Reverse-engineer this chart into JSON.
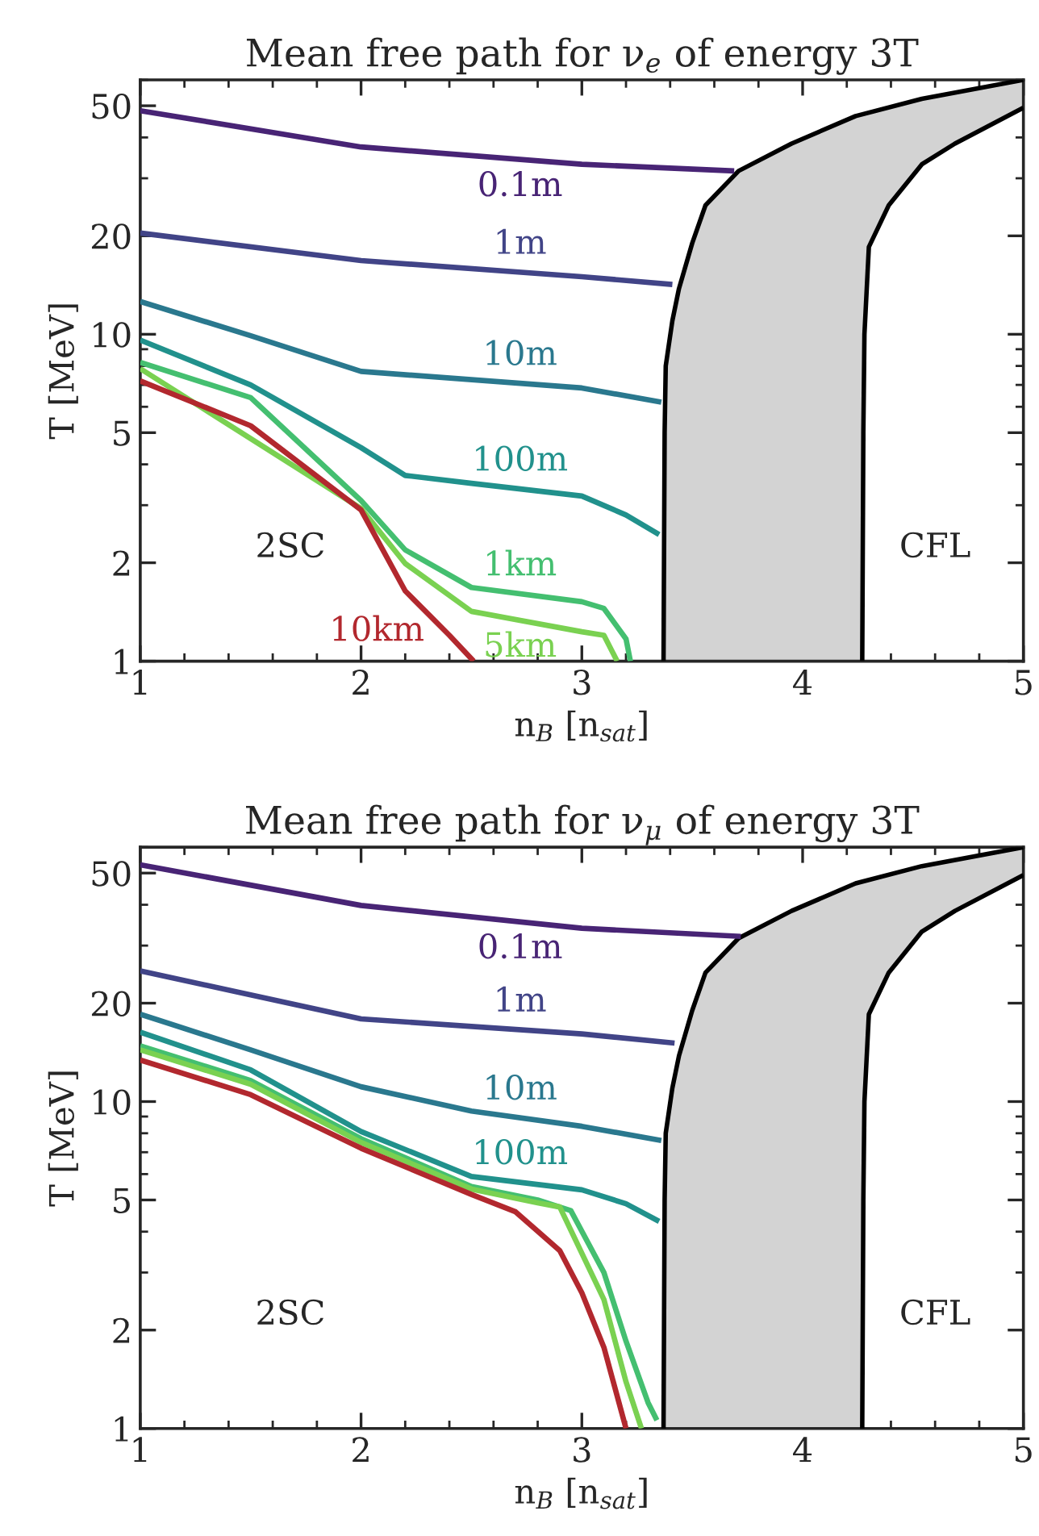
{
  "chart_data": [
    {
      "type": "line",
      "title": "Mean free path for ν$_{e}$ of energy 3T",
      "xlabel": "n$_{B}$ [n$_{sat}$]",
      "ylabel": "T [MeV]",
      "log": "y",
      "xlim": [
        1,
        5
      ],
      "ylim": [
        1,
        60
      ],
      "xticks": [
        1,
        2,
        3,
        4,
        5
      ],
      "yticks": [
        1,
        2,
        5,
        10,
        20,
        50
      ],
      "series": [
        {
          "type": "line",
          "color": "#000000",
          "x": [
            3.37,
            3.375,
            3.38,
            3.41,
            3.44,
            3.5,
            3.56,
            3.71,
            3.95,
            4.24,
            4.54,
            5
          ],
          "values": [
            1,
            5,
            8,
            11,
            13.8,
            19,
            24.8,
            31.6,
            38.3,
            46.5,
            52.5,
            60
          ]
        },
        {
          "type": "line",
          "color": "#000000",
          "x": [
            4.27,
            4.275,
            4.28,
            4.3,
            4.39,
            4.54,
            4.69,
            5
          ],
          "values": [
            1,
            5,
            10,
            18.5,
            24.8,
            33.1,
            38.3,
            49.3
          ]
        },
        {
          "name": "0.1m",
          "color": "#482475",
          "x": [
            1,
            2,
            3,
            3.69
          ],
          "values": [
            48.3,
            37.4,
            33.1,
            31.6
          ]
        },
        {
          "name": "1m",
          "color": "#414487",
          "x": [
            1,
            2,
            3,
            3.41
          ],
          "values": [
            20.4,
            16.8,
            15.0,
            14.2
          ]
        },
        {
          "name": "10m",
          "color": "#2a788e",
          "x": [
            1,
            1.5,
            2,
            3,
            3.36
          ],
          "values": [
            12.6,
            9.9,
            7.7,
            6.85,
            6.2
          ]
        },
        {
          "name": "100m",
          "color": "#21918c",
          "x": [
            1,
            1.5,
            2,
            2.2,
            2.5,
            3,
            3.2,
            3.35
          ],
          "values": [
            9.6,
            7.0,
            4.5,
            3.7,
            3.5,
            3.2,
            2.8,
            2.44
          ]
        },
        {
          "name": "1km",
          "color": "#44bf70",
          "x": [
            1,
            1.5,
            2,
            2.2,
            2.5,
            3,
            3.1,
            3.2,
            3.22
          ],
          "values": [
            8.2,
            6.4,
            3.1,
            2.19,
            1.68,
            1.52,
            1.45,
            1.17,
            1
          ]
        },
        {
          "name": "5km",
          "color": "#7ad151",
          "x": [
            1,
            2,
            2.2,
            2.5,
            3,
            3.1,
            3.16
          ],
          "values": [
            7.85,
            2.93,
            1.99,
            1.42,
            1.23,
            1.2,
            1
          ]
        },
        {
          "name": "10km",
          "color": "#b2282e",
          "x": [
            1,
            1.5,
            2,
            2.2,
            2.4,
            2.51
          ],
          "values": [
            7.2,
            5.25,
            2.9,
            1.64,
            1.2,
            1
          ]
        }
      ],
      "annotations": [
        "2SC",
        "CFL"
      ]
    },
    {
      "type": "line",
      "title": "Mean free path for ν$_{μ}$ of energy 3T",
      "xlabel": "n$_{B}$ [n$_{sat}$]",
      "ylabel": "T [MeV]",
      "log": "y",
      "xlim": [
        1,
        5
      ],
      "ylim": [
        1,
        60
      ],
      "xticks": [
        1,
        2,
        3,
        4,
        5
      ],
      "yticks": [
        1,
        2,
        5,
        10,
        20,
        50
      ],
      "series": [
        {
          "type": "line",
          "color": "#000000",
          "x": [
            3.37,
            3.375,
            3.38,
            3.41,
            3.44,
            3.5,
            3.56,
            3.71,
            3.95,
            4.24,
            4.54,
            5
          ],
          "values": [
            1,
            5,
            8,
            11,
            13.8,
            19,
            24.8,
            31.6,
            38.3,
            46.5,
            52.5,
            60
          ]
        },
        {
          "type": "line",
          "color": "#000000",
          "x": [
            4.27,
            4.275,
            4.28,
            4.3,
            4.39,
            4.54,
            4.69,
            5
          ],
          "values": [
            1,
            5,
            10,
            18.5,
            24.8,
            33.1,
            38.3,
            49.3
          ]
        },
        {
          "name": "0.1m",
          "color": "#482475",
          "x": [
            1,
            2,
            3,
            3.72
          ],
          "values": [
            53,
            39.8,
            33.9,
            32
          ]
        },
        {
          "name": "1m",
          "color": "#414487",
          "x": [
            1,
            1.5,
            2,
            3,
            3.42
          ],
          "values": [
            25.1,
            21.2,
            17.9,
            16.1,
            15.1
          ]
        },
        {
          "name": "10m",
          "color": "#2a788e",
          "x": [
            1,
            1.5,
            2,
            2.5,
            3,
            3.36
          ],
          "values": [
            18.5,
            14.4,
            11.1,
            9.35,
            8.4,
            7.6
          ]
        },
        {
          "name": "100m",
          "color": "#21918c",
          "x": [
            1,
            1.5,
            2,
            2.5,
            3,
            3.2,
            3.35
          ],
          "values": [
            16.3,
            12.5,
            8.1,
            5.9,
            5.37,
            4.87,
            4.3
          ]
        },
        {
          "color": "#44bf70",
          "x": [
            1,
            1.5,
            2,
            2.5,
            2.8,
            2.95,
            3.1,
            3.2,
            3.3,
            3.34
          ],
          "values": [
            14.8,
            11.6,
            7.7,
            5.5,
            5.0,
            4.64,
            3.0,
            1.85,
            1.2,
            1.06
          ]
        },
        {
          "color": "#7ad151",
          "x": [
            1,
            1.5,
            2,
            2.5,
            2.8,
            2.9,
            3.1,
            3.2,
            3.27
          ],
          "values": [
            14.4,
            11.3,
            7.5,
            5.4,
            4.9,
            4.76,
            2.48,
            1.39,
            1
          ]
        },
        {
          "color": "#b2282e",
          "x": [
            1,
            1.5,
            2,
            2.5,
            2.7,
            2.9,
            3,
            3.1,
            3.2
          ],
          "values": [
            13.4,
            10.5,
            7.2,
            5.2,
            4.6,
            3.5,
            2.6,
            1.77,
            1
          ]
        }
      ],
      "annotations": [
        "2SC",
        "CFL"
      ]
    }
  ]
}
